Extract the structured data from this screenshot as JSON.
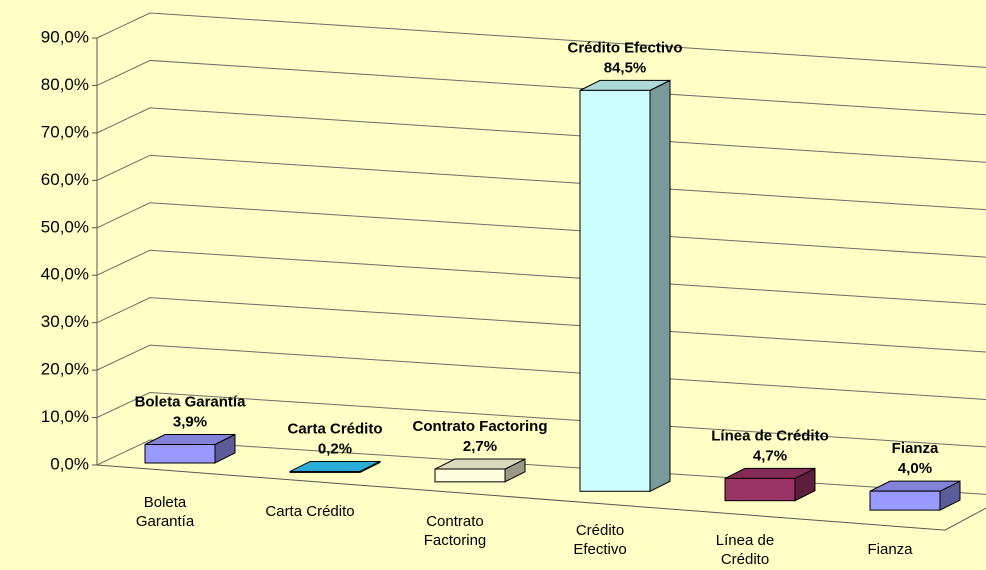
{
  "chart_data": {
    "type": "bar3d",
    "categories": [
      "Boleta Garantía",
      "Carta Crédito",
      "Contrato Factoring",
      "Crédito Efectivo",
      "Línea de Crédito",
      "Fianza"
    ],
    "values": [
      3.9,
      0.2,
      2.7,
      84.5,
      4.7,
      4.0
    ],
    "value_labels": [
      "3,9%",
      "0,2%",
      "2,7%",
      "84,5%",
      "4,7%",
      "4,0%"
    ],
    "colors": [
      "#9999ff",
      "#33ccff",
      "#ffffe0",
      "#ccffff",
      "#993366",
      "#9999ff"
    ],
    "ylim": [
      0,
      90
    ],
    "yticks": [
      {
        "value": 0,
        "label": "0,0%"
      },
      {
        "value": 10,
        "label": "10,0%"
      },
      {
        "value": 20,
        "label": "20,0%"
      },
      {
        "value": 30,
        "label": "30,0%"
      },
      {
        "value": 40,
        "label": "40,0%"
      },
      {
        "value": 50,
        "label": "50,0%"
      },
      {
        "value": 60,
        "label": "60,0%"
      },
      {
        "value": 70,
        "label": "70,0%"
      },
      {
        "value": 80,
        "label": "80,0%"
      },
      {
        "value": 90,
        "label": "90,0%"
      }
    ],
    "grid": true
  }
}
